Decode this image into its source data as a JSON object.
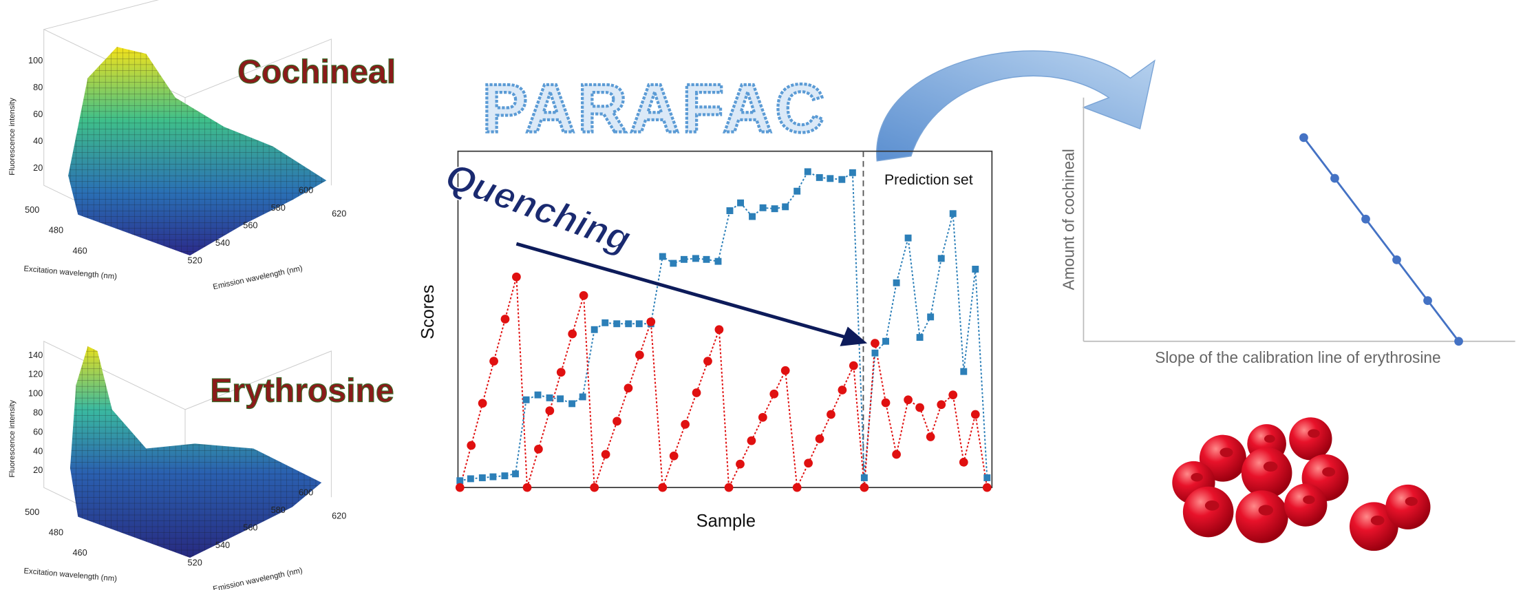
{
  "title": "PARAFAC",
  "panels": [
    {
      "label": "Cochineal",
      "z_axis_label": "Fluorescence intensity",
      "z_ticks": [
        100,
        80,
        60,
        40,
        20
      ],
      "y_axis_label": "Excitation wavelength (nm)",
      "y_ticks": [
        500,
        480,
        460
      ],
      "x_axis_label": "Emission wavelength (nm)",
      "x_ticks": [
        520,
        540,
        560,
        580,
        600,
        620
      ]
    },
    {
      "label": "Erythrosine",
      "z_axis_label": "Fluorescence intensity",
      "z_ticks": [
        140,
        120,
        100,
        80,
        60,
        40,
        20
      ],
      "y_axis_label": "Excitation wavelength (nm)",
      "y_ticks": [
        500,
        480,
        460
      ],
      "x_axis_label": "Emission wavelength (nm)",
      "x_ticks": [
        520,
        540,
        560,
        580,
        600,
        620
      ]
    }
  ],
  "scores_plot": {
    "y_axis_label": "Scores",
    "x_axis_label": "Sample",
    "annotation": "Prediction set",
    "arrow_label": "Quenching"
  },
  "calibration_plot": {
    "y_axis_label": "Amount of cochineal",
    "x_axis_label": "Slope of the calibration line of erythrosine"
  }
}
